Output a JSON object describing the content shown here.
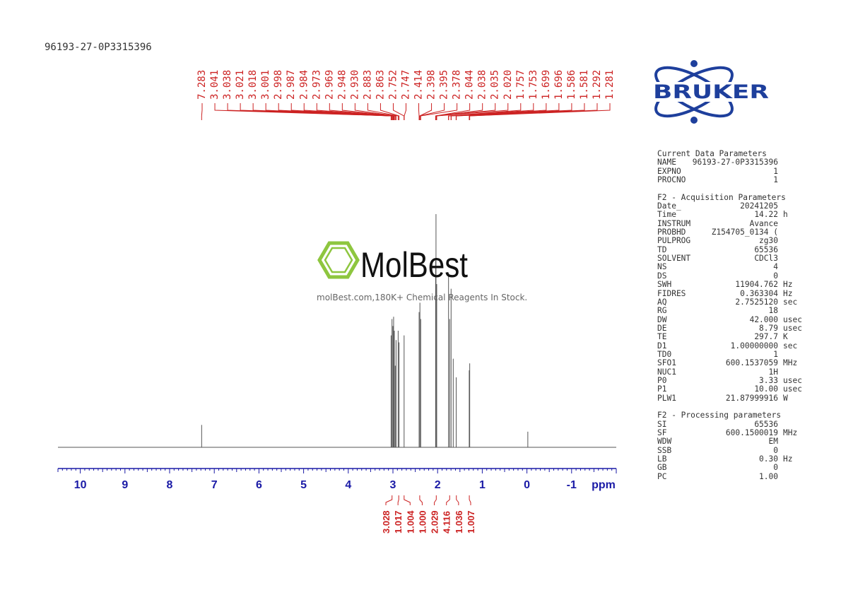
{
  "sample_id": "96193-27-0P3315396",
  "brand": "BRUKER",
  "watermark": {
    "brand": "MolBest",
    "caption": "molBest.com,180K+ Chemical Reagents In Stock."
  },
  "colors": {
    "peak_labels": "#cc2222",
    "axis": "#1a1aa6",
    "spectrum": "#555555",
    "logo": "#1e3f9c"
  },
  "parameters": {
    "sections": [
      {
        "title": "Current Data Parameters",
        "rows": [
          {
            "key": "NAME",
            "value": "96193-27-0P3315396",
            "unit": ""
          },
          {
            "key": "EXPNO",
            "value": "1",
            "unit": ""
          },
          {
            "key": "PROCNO",
            "value": "1",
            "unit": ""
          }
        ]
      },
      {
        "title": "F2 - Acquisition Parameters",
        "rows": [
          {
            "key": "Date_",
            "value": "20241205",
            "unit": ""
          },
          {
            "key": "Time",
            "value": "14.22",
            "unit": "h"
          },
          {
            "key": "INSTRUM",
            "value": "Avance",
            "unit": ""
          },
          {
            "key": "PROBHD",
            "value": "Z154705_0134 (",
            "unit": ""
          },
          {
            "key": "PULPROG",
            "value": "zg30",
            "unit": ""
          },
          {
            "key": "TD",
            "value": "65536",
            "unit": ""
          },
          {
            "key": "SOLVENT",
            "value": "CDCl3",
            "unit": ""
          },
          {
            "key": "NS",
            "value": "4",
            "unit": ""
          },
          {
            "key": "DS",
            "value": "0",
            "unit": ""
          },
          {
            "key": "SWH",
            "value": "11904.762",
            "unit": "Hz"
          },
          {
            "key": "FIDRES",
            "value": "0.363304",
            "unit": "Hz"
          },
          {
            "key": "AQ",
            "value": "2.7525120",
            "unit": "sec"
          },
          {
            "key": "RG",
            "value": "18",
            "unit": ""
          },
          {
            "key": "DW",
            "value": "42.000",
            "unit": "usec"
          },
          {
            "key": "DE",
            "value": "8.79",
            "unit": "usec"
          },
          {
            "key": "TE",
            "value": "297.7",
            "unit": "K"
          },
          {
            "key": "D1",
            "value": "1.00000000",
            "unit": "sec"
          },
          {
            "key": "TD0",
            "value": "1",
            "unit": ""
          },
          {
            "key": "SFO1",
            "value": "600.1537059",
            "unit": "MHz"
          },
          {
            "key": "NUC1",
            "value": "1H",
            "unit": ""
          },
          {
            "key": "P0",
            "value": "3.33",
            "unit": "usec"
          },
          {
            "key": "P1",
            "value": "10.00",
            "unit": "usec"
          },
          {
            "key": "PLW1",
            "value": "21.87999916",
            "unit": "W"
          }
        ]
      },
      {
        "title": "F2 - Processing parameters",
        "rows": [
          {
            "key": "SI",
            "value": "65536",
            "unit": ""
          },
          {
            "key": "SF",
            "value": "600.1500019",
            "unit": "MHz"
          },
          {
            "key": "WDW",
            "value": "EM",
            "unit": ""
          },
          {
            "key": "SSB",
            "value": "0",
            "unit": ""
          },
          {
            "key": "LB",
            "value": "0.30",
            "unit": "Hz"
          },
          {
            "key": "GB",
            "value": "0",
            "unit": ""
          },
          {
            "key": "PC",
            "value": "1.00",
            "unit": ""
          }
        ]
      }
    ]
  },
  "chart_data": {
    "type": "line",
    "title": "",
    "xlabel": "ppm",
    "xlim": [
      10.5,
      -2.0
    ],
    "x_reversed": true,
    "ylim": [
      0,
      1
    ],
    "x_ticks": [
      10,
      9,
      8,
      7,
      6,
      5,
      4,
      3,
      2,
      1,
      0,
      -1
    ],
    "x_tick_labels": [
      "10",
      "9",
      "8",
      "7",
      "6",
      "5",
      "4",
      "3",
      "2",
      "1",
      "0",
      "-1"
    ],
    "peak_labels": [
      "7.283",
      "3.041",
      "3.038",
      "3.021",
      "3.018",
      "3.001",
      "2.998",
      "2.987",
      "2.984",
      "2.973",
      "2.969",
      "2.948",
      "2.930",
      "2.883",
      "2.863",
      "2.752",
      "2.747",
      "2.414",
      "2.398",
      "2.395",
      "2.378",
      "2.044",
      "2.038",
      "2.035",
      "2.020",
      "1.757",
      "1.753",
      "1.699",
      "1.696",
      "1.586",
      "1.581",
      "1.292",
      "1.281"
    ],
    "peaks": [
      {
        "ppm": 7.283,
        "height": 0.096
      },
      {
        "ppm": 3.041,
        "height": 0.48
      },
      {
        "ppm": 3.021,
        "height": 0.55
      },
      {
        "ppm": 3.001,
        "height": 0.52
      },
      {
        "ppm": 2.985,
        "height": 0.56
      },
      {
        "ppm": 2.969,
        "height": 0.5
      },
      {
        "ppm": 2.948,
        "height": 0.35
      },
      {
        "ppm": 2.93,
        "height": 0.46
      },
      {
        "ppm": 2.883,
        "height": 0.5
      },
      {
        "ppm": 2.863,
        "height": 0.45
      },
      {
        "ppm": 2.75,
        "height": 0.48
      },
      {
        "ppm": 2.414,
        "height": 0.58
      },
      {
        "ppm": 2.396,
        "height": 0.62
      },
      {
        "ppm": 2.378,
        "height": 0.55
      },
      {
        "ppm": 2.044,
        "height": 0.8
      },
      {
        "ppm": 2.036,
        "height": 1.0
      },
      {
        "ppm": 2.02,
        "height": 0.7
      },
      {
        "ppm": 1.755,
        "height": 0.75
      },
      {
        "ppm": 1.73,
        "height": 0.55
      },
      {
        "ppm": 1.698,
        "height": 0.68
      },
      {
        "ppm": 1.65,
        "height": 0.38
      },
      {
        "ppm": 1.584,
        "height": 0.3
      },
      {
        "ppm": 1.292,
        "height": 0.33
      },
      {
        "ppm": 1.281,
        "height": 0.36
      },
      {
        "ppm": -0.02,
        "height": 0.067
      }
    ],
    "integrals": [
      {
        "label": "3.028",
        "ppm": 3.02
      },
      {
        "label": "1.017",
        "ppm": 2.87
      },
      {
        "label": "1.004",
        "ppm": 2.75
      },
      {
        "label": "1.000",
        "ppm": 2.4
      },
      {
        "label": "2.029",
        "ppm": 2.03
      },
      {
        "label": "4.116",
        "ppm": 1.73
      },
      {
        "label": "1.036",
        "ppm": 1.58
      },
      {
        "label": "1.007",
        "ppm": 1.29
      }
    ]
  }
}
